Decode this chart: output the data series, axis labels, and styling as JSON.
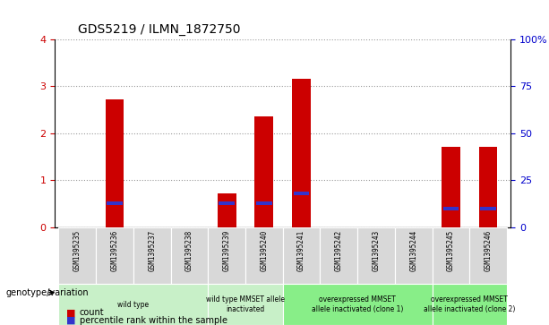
{
  "title": "GDS5219 / ILMN_1872750",
  "samples": [
    "GSM1395235",
    "GSM1395236",
    "GSM1395237",
    "GSM1395238",
    "GSM1395239",
    "GSM1395240",
    "GSM1395241",
    "GSM1395242",
    "GSM1395243",
    "GSM1395244",
    "GSM1395245",
    "GSM1395246"
  ],
  "counts": [
    0,
    2.72,
    0,
    0,
    0.72,
    2.35,
    3.15,
    0,
    0,
    0,
    1.72,
    1.72
  ],
  "percentile_ranks_scaled": [
    0,
    13,
    0,
    0,
    13,
    13,
    18,
    0,
    0,
    0,
    10,
    10
  ],
  "bar_color": "#cc0000",
  "percentile_color": "#3333cc",
  "ylim_left": [
    0,
    4
  ],
  "ylim_right": [
    0,
    100
  ],
  "yticks_left": [
    0,
    1,
    2,
    3,
    4
  ],
  "yticks_right": [
    0,
    25,
    50,
    75,
    100
  ],
  "ytick_labels_right": [
    "0",
    "25",
    "50",
    "75",
    "100%"
  ],
  "groups": [
    {
      "label": "wild type",
      "start": 0,
      "end": 3,
      "bg": "#c8f0c8"
    },
    {
      "label": "wild type MMSET allele\ninactivated",
      "start": 4,
      "end": 5,
      "bg": "#c8f0c8"
    },
    {
      "label": "overexpressed MMSET\nallele inactivated (clone 1)",
      "start": 6,
      "end": 9,
      "bg": "#88ee88"
    },
    {
      "label": "overexpressed MMSET\nallele inactivated (clone 2)",
      "start": 10,
      "end": 11,
      "bg": "#88ee88"
    }
  ],
  "group_label_prefix": "genotype/variation",
  "legend_items": [
    {
      "color": "#cc0000",
      "label": "count"
    },
    {
      "color": "#3333cc",
      "label": "percentile rank within the sample"
    }
  ],
  "bar_width": 0.5,
  "sample_box_color": "#d8d8d8",
  "plot_bg": "#ffffff",
  "left_tick_color": "#cc0000",
  "right_tick_color": "#0000cc"
}
